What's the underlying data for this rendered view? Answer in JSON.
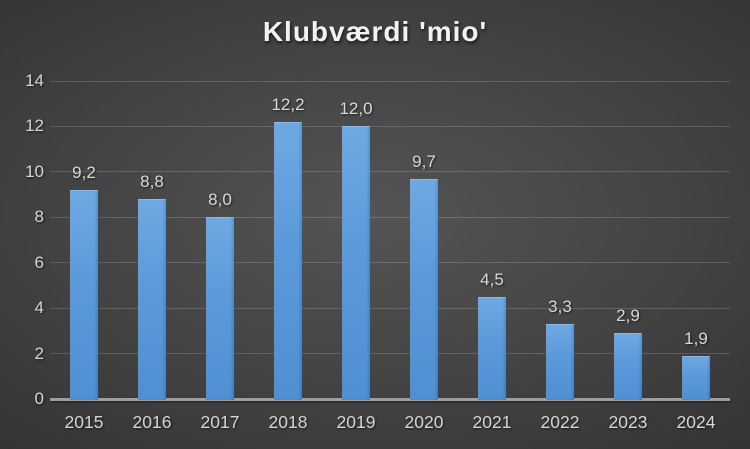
{
  "chart_data": {
    "type": "bar",
    "title": "Klubværdi 'mio'",
    "categories": [
      "2015",
      "2016",
      "2017",
      "2018",
      "2019",
      "2020",
      "2021",
      "2022",
      "2023",
      "2024"
    ],
    "values": [
      9.2,
      8.8,
      8.0,
      12.2,
      12.0,
      9.7,
      4.5,
      3.3,
      2.9,
      1.9
    ],
    "value_labels": [
      "9,2",
      "8,8",
      "8,0",
      "12,2",
      "12,0",
      "9,7",
      "4,5",
      "3,3",
      "2,9",
      "1,9"
    ],
    "xlabel": "",
    "ylabel": "",
    "ylim": [
      0,
      14
    ],
    "ytick_values": [
      0,
      2,
      4,
      6,
      8,
      10,
      12,
      14
    ],
    "ytick_labels": [
      "0",
      "2",
      "4",
      "6",
      "8",
      "10",
      "12",
      "14"
    ],
    "grid": true,
    "legend_position": "none",
    "colors": {
      "bar_fill_top": "#6fa9e3",
      "bar_fill_bottom": "#4f90d2",
      "background_center": "#545454",
      "background_edge": "#262626",
      "gridline": "rgba(255,255,255,0.16)",
      "axis_line": "#9e9e9e",
      "text": "#d6d6d6",
      "title_text": "#f2f2f2"
    }
  }
}
